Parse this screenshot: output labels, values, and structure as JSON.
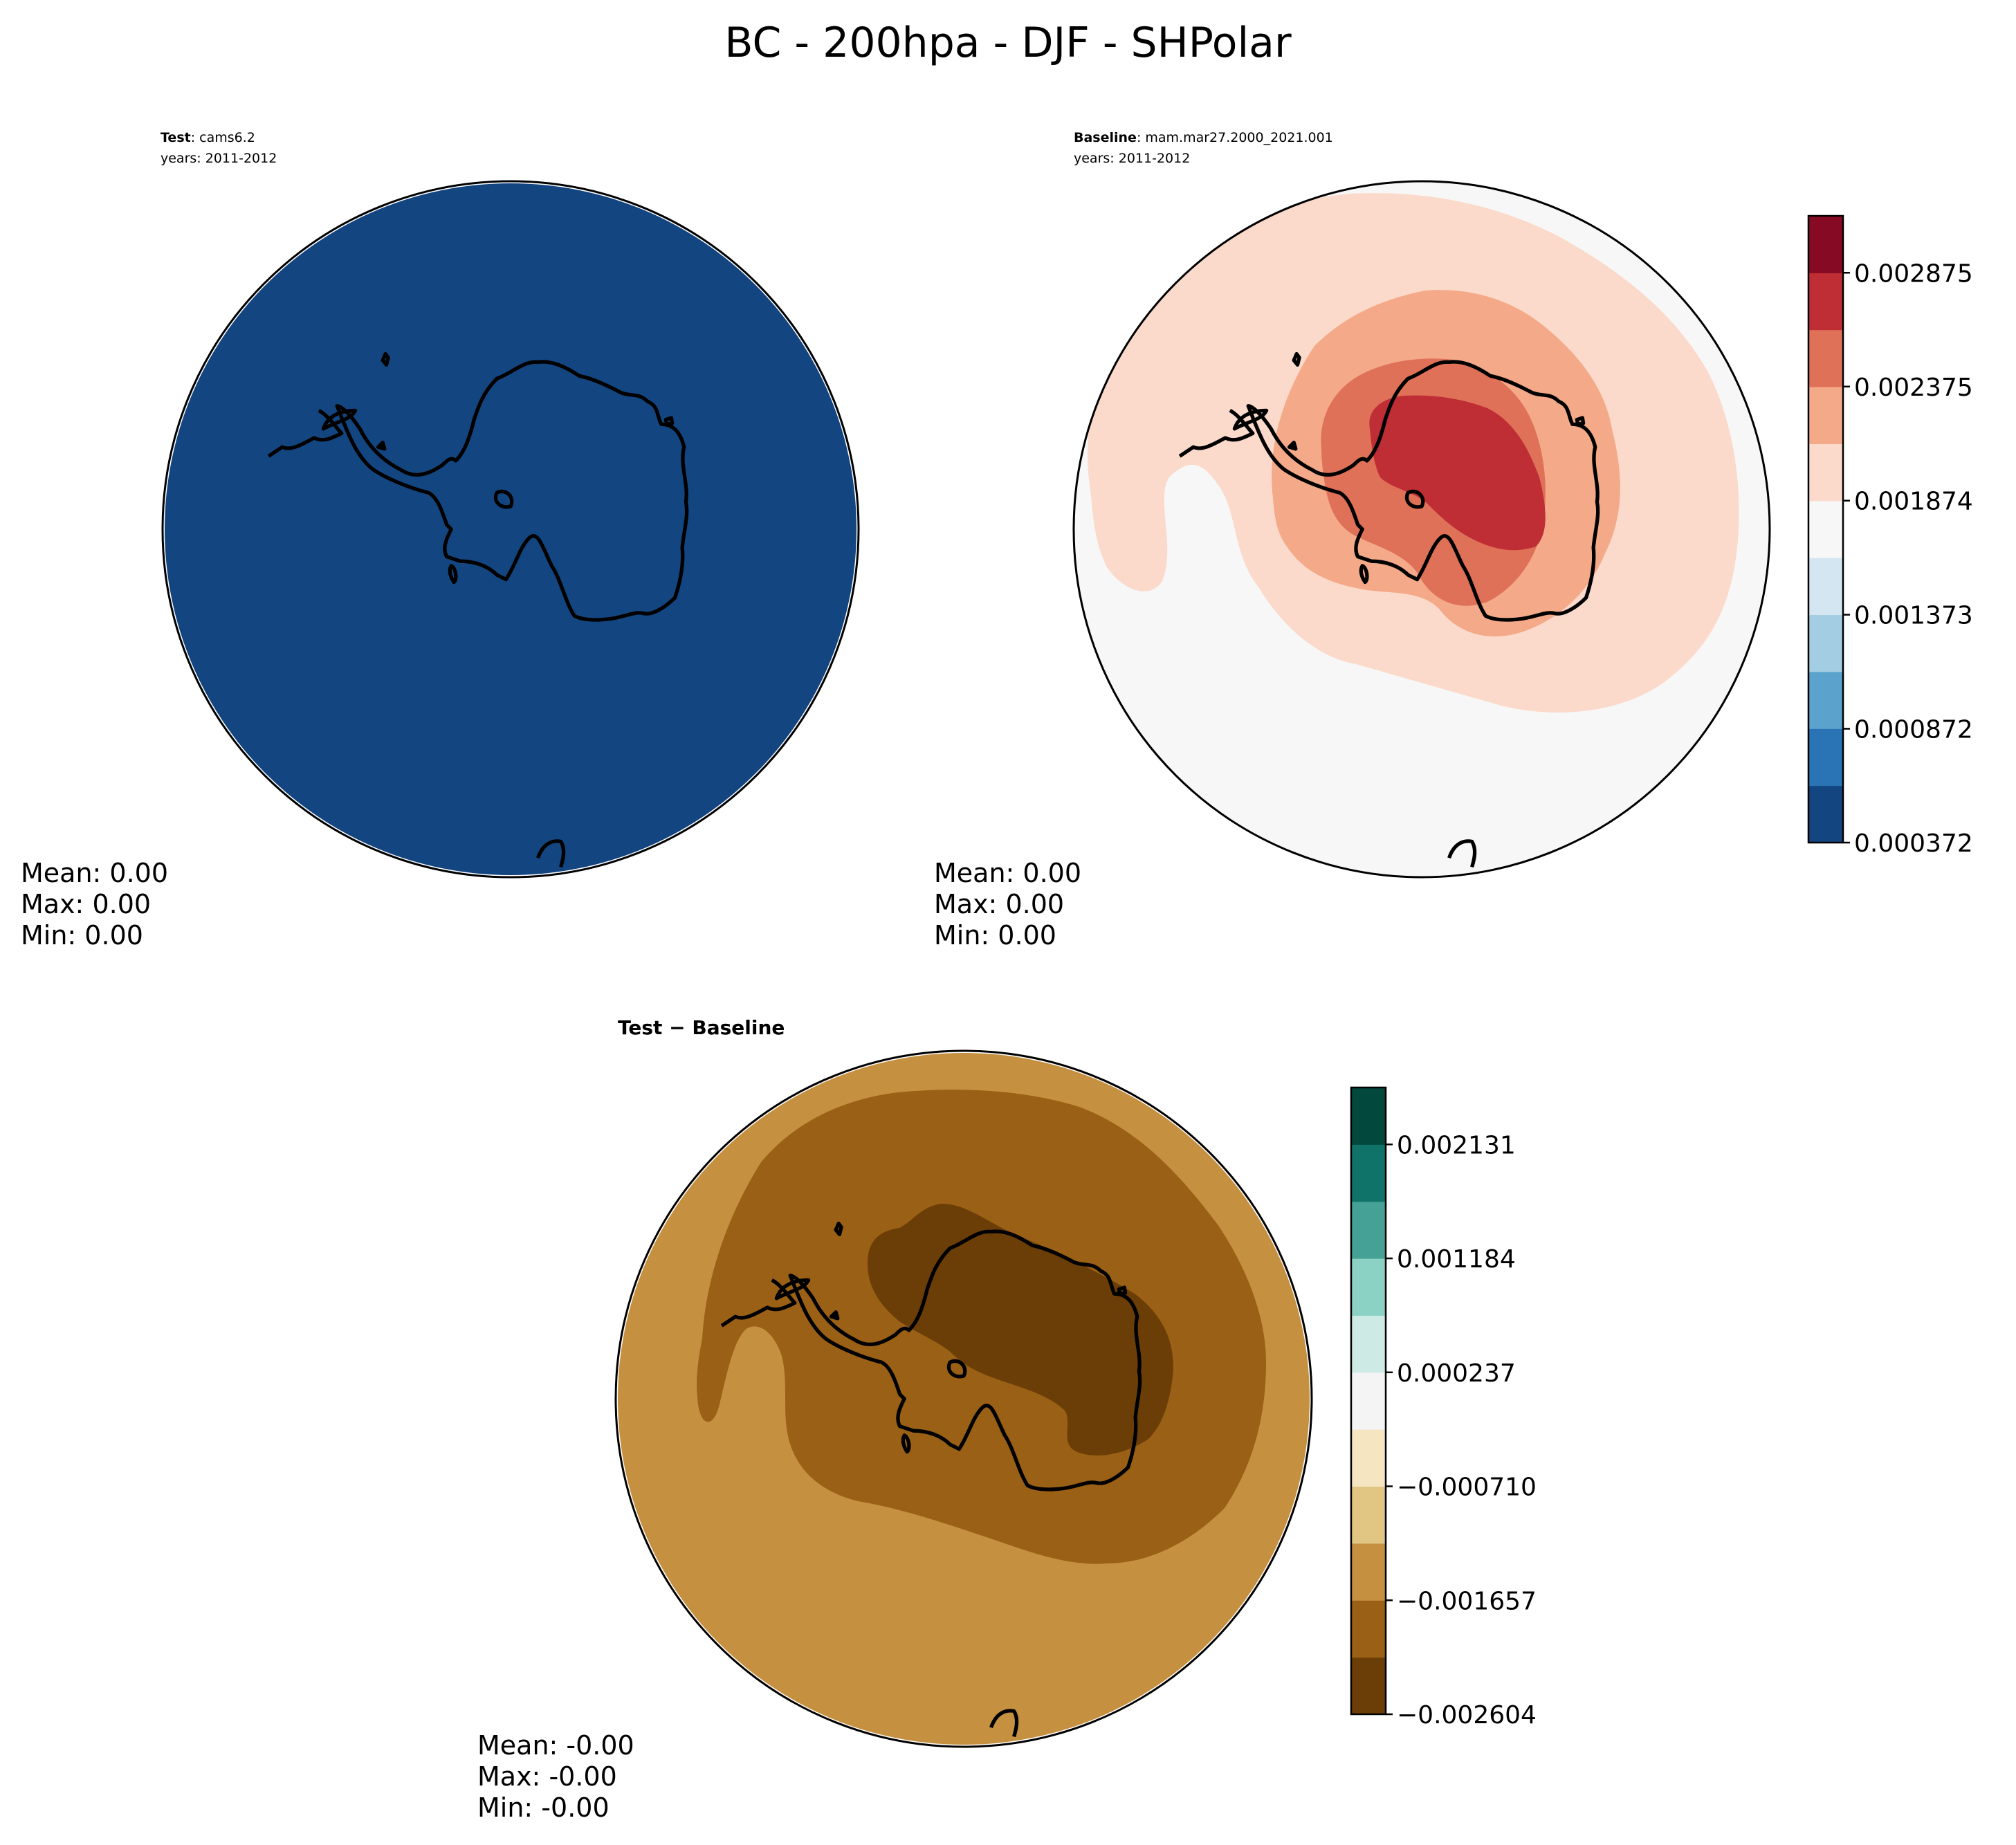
{
  "figure": {
    "title": "BC - 200hpa - DJF - SHPolar"
  },
  "chart_data": [
    {
      "type": "heatmap",
      "projection": "South Polar Stereographic",
      "title_label": "Test",
      "title_value": ": cams6.2",
      "years": "years: 2011-2012",
      "stats": [
        "Mean:  0.00",
        "Max:  0.00",
        "Min:  0.00"
      ],
      "field_levels": [
        0
      ]
    },
    {
      "type": "heatmap",
      "projection": "South Polar Stereographic",
      "title_label": "Baseline",
      "title_value": ": mam.mar27.2000_2021.001",
      "years": "years: 2011-2012",
      "stats": [
        "Mean:  0.00",
        "Max:  0.00",
        "Min:  0.00"
      ],
      "field_levels": [
        5,
        6,
        7,
        8,
        9
      ],
      "colorbar": {
        "colormap": "RdBu_r",
        "range": [
          0.000372,
          0.003125
        ],
        "n_bins": 11,
        "colors": [
          "#134580",
          "#2a73b4",
          "#5ba2cc",
          "#a2cde2",
          "#d4e6f1",
          "#f7f7f7",
          "#fcdacb",
          "#f4aa89",
          "#df7159",
          "#bf2d35",
          "#860a24"
        ],
        "ticks": [
          0.000372,
          0.000872,
          0.001373,
          0.001874,
          0.002375,
          0.002875
        ],
        "tick_labels": [
          "0.000372",
          "0.000872",
          "0.001373",
          "0.001874",
          "0.002375",
          "0.002875"
        ]
      }
    },
    {
      "type": "heatmap",
      "projection": "South Polar Stereographic",
      "title_label": "Test − Baseline",
      "stats": [
        "Mean: -0.00",
        "Max: -0.00",
        "Min: -0.00"
      ],
      "field_levels": [
        2,
        1,
        0
      ],
      "colorbar": {
        "colormap": "BrBG",
        "range": [
          -0.002604,
          0.002604
        ],
        "n_bins": 11,
        "colors": [
          "#6b3d07",
          "#9a6015",
          "#c69041",
          "#e1c583",
          "#f5e6c1",
          "#f4f4f4",
          "#cdeae5",
          "#8bd2c4",
          "#45a095",
          "#107369",
          "#02483d"
        ],
        "ticks": [
          -0.002604,
          -0.001657,
          -0.00071,
          0.000237,
          0.001184,
          0.002131
        ],
        "tick_labels": [
          "−0.002604",
          "−0.001657",
          "−0.000710",
          "0.000237",
          "0.001184",
          "0.002131"
        ]
      }
    }
  ]
}
